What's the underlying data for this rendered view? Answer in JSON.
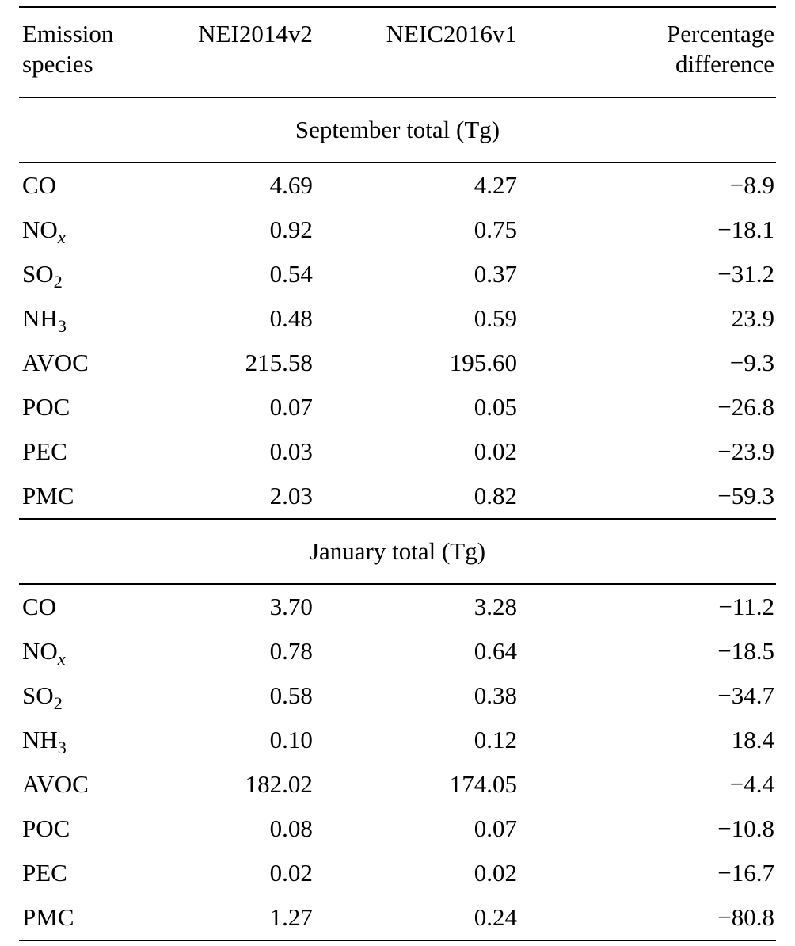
{
  "table": {
    "header": {
      "species": "Emission\nspecies",
      "inventory_2014": "NEI2014v2",
      "inventory_2016": "NEIC2016v1",
      "difference": "Percentage\ndifference"
    },
    "sections": [
      {
        "title": "September total (Tg)",
        "rows": [
          {
            "species": "CO",
            "sub": "",
            "sub_italic": false,
            "v1": "4.69",
            "v2": "4.27",
            "diff": "−8.9"
          },
          {
            "species": "NO",
            "sub": "x",
            "sub_italic": true,
            "v1": "0.92",
            "v2": "0.75",
            "diff": "−18.1"
          },
          {
            "species": "SO",
            "sub": "2",
            "sub_italic": false,
            "v1": "0.54",
            "v2": "0.37",
            "diff": "−31.2"
          },
          {
            "species": "NH",
            "sub": "3",
            "sub_italic": false,
            "v1": "0.48",
            "v2": "0.59",
            "diff": "23.9"
          },
          {
            "species": "AVOC",
            "sub": "",
            "sub_italic": false,
            "v1": "215.58",
            "v2": "195.60",
            "diff": "−9.3"
          },
          {
            "species": "POC",
            "sub": "",
            "sub_italic": false,
            "v1": "0.07",
            "v2": "0.05",
            "diff": "−26.8"
          },
          {
            "species": "PEC",
            "sub": "",
            "sub_italic": false,
            "v1": "0.03",
            "v2": "0.02",
            "diff": "−23.9"
          },
          {
            "species": "PMC",
            "sub": "",
            "sub_italic": false,
            "v1": "2.03",
            "v2": "0.82",
            "diff": "−59.3"
          }
        ]
      },
      {
        "title": "January total (Tg)",
        "rows": [
          {
            "species": "CO",
            "sub": "",
            "sub_italic": false,
            "v1": "3.70",
            "v2": "3.28",
            "diff": "−11.2"
          },
          {
            "species": "NO",
            "sub": "x",
            "sub_italic": true,
            "v1": "0.78",
            "v2": "0.64",
            "diff": "−18.5"
          },
          {
            "species": "SO",
            "sub": "2",
            "sub_italic": false,
            "v1": "0.58",
            "v2": "0.38",
            "diff": "−34.7"
          },
          {
            "species": "NH",
            "sub": "3",
            "sub_italic": false,
            "v1": "0.10",
            "v2": "0.12",
            "diff": "18.4"
          },
          {
            "species": "AVOC",
            "sub": "",
            "sub_italic": false,
            "v1": "182.02",
            "v2": "174.05",
            "diff": "−4.4"
          },
          {
            "species": "POC",
            "sub": "",
            "sub_italic": false,
            "v1": "0.08",
            "v2": "0.07",
            "diff": "−10.8"
          },
          {
            "species": "PEC",
            "sub": "",
            "sub_italic": false,
            "v1": "0.02",
            "v2": "0.02",
            "diff": "−16.7"
          },
          {
            "species": "PMC",
            "sub": "",
            "sub_italic": false,
            "v1": "1.27",
            "v2": "0.24",
            "diff": "−80.8"
          }
        ]
      }
    ]
  }
}
